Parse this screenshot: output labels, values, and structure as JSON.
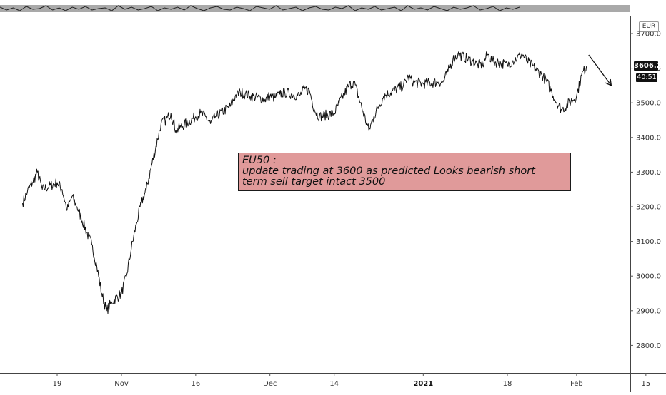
{
  "chart_data": {
    "type": "line",
    "symbol": "EU50",
    "currency": "EUR",
    "last_price": "3606.2",
    "countdown": "40:51",
    "y_ticks": [
      "3700.0",
      "3600.0",
      "3500.0",
      "3400.0",
      "3300.0",
      "3200.0",
      "3100.0",
      "3000.0",
      "2900.0",
      "2800.0"
    ],
    "ylim": [
      2700,
      3700
    ],
    "x_ticks": [
      {
        "label": "19",
        "x": "2020-10-19"
      },
      {
        "label": "Nov",
        "x": "2020-11-01"
      },
      {
        "label": "16",
        "x": "2020-11-16"
      },
      {
        "label": "Dec",
        "x": "2020-12-01"
      },
      {
        "label": "14",
        "x": "2020-12-14"
      },
      {
        "label": "2021",
        "x": "2021-01-01",
        "bold": true
      },
      {
        "label": "18",
        "x": "2021-01-18"
      },
      {
        "label": "Feb",
        "x": "2021-02-01"
      },
      {
        "label": "15",
        "x": "2021-02-15"
      }
    ],
    "grid": false,
    "series": [
      {
        "points": [
          [
            "2020-10-12",
            3210
          ],
          [
            "2020-10-13",
            3245
          ],
          [
            "2020-10-14",
            3270
          ],
          [
            "2020-10-15",
            3300
          ],
          [
            "2020-10-16",
            3250
          ],
          [
            "2020-10-19",
            3270
          ],
          [
            "2020-10-20",
            3250
          ],
          [
            "2020-10-21",
            3190
          ],
          [
            "2020-10-22",
            3230
          ],
          [
            "2020-10-23",
            3200
          ],
          [
            "2020-10-26",
            3090
          ],
          [
            "2020-10-27",
            3030
          ],
          [
            "2020-10-28",
            2950
          ],
          [
            "2020-10-29",
            2900
          ],
          [
            "2020-10-30",
            2925
          ],
          [
            "2020-11-01",
            2950
          ],
          [
            "2020-11-02",
            3000
          ],
          [
            "2020-11-03",
            3080
          ],
          [
            "2020-11-04",
            3150
          ],
          [
            "2020-11-05",
            3210
          ],
          [
            "2020-11-06",
            3250
          ],
          [
            "2020-11-09",
            3440
          ],
          [
            "2020-11-10",
            3450
          ],
          [
            "2020-11-11",
            3470
          ],
          [
            "2020-11-12",
            3420
          ],
          [
            "2020-11-13",
            3430
          ],
          [
            "2020-11-16",
            3460
          ],
          [
            "2020-11-17",
            3470
          ],
          [
            "2020-11-18",
            3460
          ],
          [
            "2020-11-19",
            3440
          ],
          [
            "2020-11-20",
            3460
          ],
          [
            "2020-11-23",
            3490
          ],
          [
            "2020-11-24",
            3520
          ],
          [
            "2020-11-25",
            3530
          ],
          [
            "2020-11-26",
            3525
          ],
          [
            "2020-11-27",
            3520
          ],
          [
            "2020-11-30",
            3510
          ],
          [
            "2020-12-01",
            3520
          ],
          [
            "2020-12-02",
            3515
          ],
          [
            "2020-12-03",
            3525
          ],
          [
            "2020-12-04",
            3530
          ],
          [
            "2020-12-07",
            3520
          ],
          [
            "2020-12-08",
            3540
          ],
          [
            "2020-12-09",
            3535
          ],
          [
            "2020-12-10",
            3480
          ],
          [
            "2020-12-11",
            3460
          ],
          [
            "2020-12-14",
            3470
          ],
          [
            "2020-12-15",
            3500
          ],
          [
            "2020-12-16",
            3525
          ],
          [
            "2020-12-17",
            3550
          ],
          [
            "2020-12-18",
            3560
          ],
          [
            "2020-12-21",
            3420
          ],
          [
            "2020-12-22",
            3460
          ],
          [
            "2020-12-23",
            3490
          ],
          [
            "2020-12-24",
            3520
          ],
          [
            "2020-12-28",
            3550
          ],
          [
            "2020-12-29",
            3575
          ],
          [
            "2020-12-30",
            3560
          ],
          [
            "2021-01-01",
            3555
          ],
          [
            "2021-01-04",
            3560
          ],
          [
            "2021-01-05",
            3560
          ],
          [
            "2021-01-06",
            3590
          ],
          [
            "2021-01-07",
            3625
          ],
          [
            "2021-01-08",
            3640
          ],
          [
            "2021-01-11",
            3620
          ],
          [
            "2021-01-12",
            3610
          ],
          [
            "2021-01-13",
            3610
          ],
          [
            "2021-01-14",
            3640
          ],
          [
            "2021-01-15",
            3620
          ],
          [
            "2021-01-18",
            3610
          ],
          [
            "2021-01-19",
            3620
          ],
          [
            "2021-01-20",
            3630
          ],
          [
            "2021-01-21",
            3640
          ],
          [
            "2021-01-22",
            3620
          ],
          [
            "2021-01-25",
            3580
          ],
          [
            "2021-01-26",
            3560
          ],
          [
            "2021-01-27",
            3530
          ],
          [
            "2021-01-28",
            3500
          ],
          [
            "2021-01-29",
            3480
          ],
          [
            "2021-02-01",
            3520
          ],
          [
            "2021-02-02",
            3580
          ],
          [
            "2021-02-03",
            3606.2
          ]
        ]
      }
    ],
    "projection": [
      [
        "2021-02-03",
        3630
      ],
      [
        "2021-02-08",
        3550
      ]
    ],
    "annotation": {
      "lines": [
        "EU50 :",
        "update trading at 3600 as predicted Looks bearish short",
        "term sell target intact 3500"
      ]
    },
    "oscillator": {
      "values": [
        0.7,
        0.3,
        0.6,
        0.2,
        0.8,
        0.4,
        0.5,
        0.9,
        0.3,
        0.6,
        0.2,
        0.7,
        0.4,
        0.8,
        0.3,
        0.5,
        0.6,
        0.2,
        0.9,
        0.4,
        0.7,
        0.3,
        0.5,
        0.8,
        0.2,
        0.6,
        0.4,
        0.7,
        0.3,
        0.9,
        0.5,
        0.2,
        0.6,
        0.8,
        0.4,
        0.3,
        0.7,
        0.5,
        0.2,
        0.8,
        0.6,
        0.4,
        0.9,
        0.3,
        0.5,
        0.7,
        0.2,
        0.6,
        0.8,
        0.4,
        0.3,
        0.7,
        0.5,
        0.9,
        0.2,
        0.6,
        0.4,
        0.8,
        0.3,
        0.5,
        0.7,
        0.2,
        0.9,
        0.4,
        0.6,
        0.3,
        0.8,
        0.5,
        0.2,
        0.7,
        0.4,
        0.6,
        0.9,
        0.3,
        0.5,
        0.8,
        0.2,
        0.6,
        0.4,
        0.7
      ]
    },
    "colors": {
      "price_line": "#111111",
      "annotation_bg": "#e09a9a",
      "tag_bg": "#111111",
      "oscillator_band": "#9a9a9a"
    }
  }
}
